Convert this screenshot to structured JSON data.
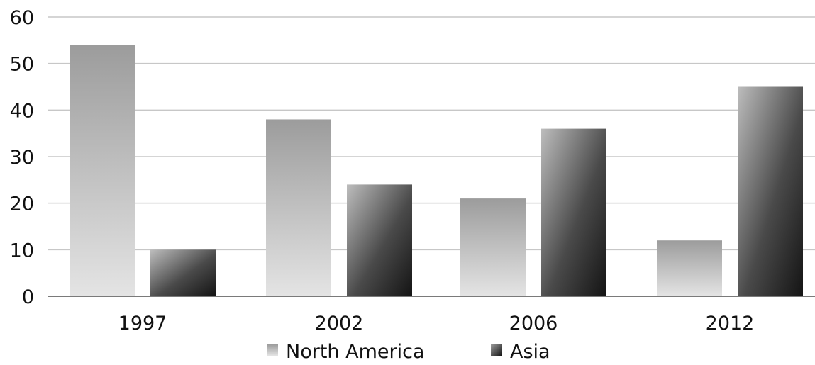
{
  "chart_data": {
    "type": "bar",
    "categories": [
      "1997",
      "2002",
      "2006",
      "2012"
    ],
    "series": [
      {
        "name": "North America",
        "values": [
          54,
          38,
          21,
          12
        ]
      },
      {
        "name": "Asia",
        "values": [
          10,
          24,
          36,
          45
        ]
      }
    ],
    "ylim": [
      0,
      60
    ],
    "yticks": [
      "0",
      "10",
      "20",
      "30",
      "40",
      "50",
      "60"
    ],
    "grid": true,
    "legend_position": "bottom",
    "colors": {
      "north_america_light": "#e3e3e3",
      "north_america_dark": "#9e9e9e",
      "asia_light": "#b8b8b8",
      "asia_dark": "#1a1a1a",
      "grid": "#c7c7c7",
      "axis": "#7a7a7a"
    }
  }
}
